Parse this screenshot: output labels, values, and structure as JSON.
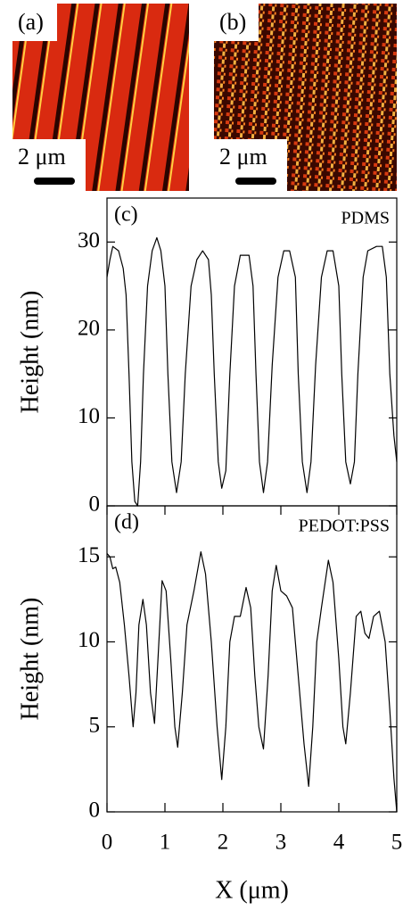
{
  "images": [
    {
      "label": "(a)",
      "scale": "2 μm"
    },
    {
      "label": "(b)",
      "scale": "2 μm"
    }
  ],
  "chart_data": [
    {
      "type": "line",
      "annotation": "(c)",
      "title": "PDMS",
      "ylabel": "Height (nm)",
      "color": "#000000",
      "xlim": [
        0,
        5
      ],
      "ylim": [
        0,
        35
      ],
      "yticks": [
        0,
        10,
        20,
        30
      ],
      "x": [
        0,
        0.05,
        0.1,
        0.2,
        0.28,
        0.33,
        0.38,
        0.43,
        0.48,
        0.53,
        0.58,
        0.63,
        0.7,
        0.78,
        0.86,
        0.93,
        1.0,
        1.05,
        1.12,
        1.2,
        1.28,
        1.35,
        1.45,
        1.55,
        1.65,
        1.75,
        1.8,
        1.85,
        1.92,
        1.98,
        2.05,
        2.12,
        2.2,
        2.3,
        2.45,
        2.52,
        2.57,
        2.63,
        2.7,
        2.77,
        2.85,
        2.95,
        3.05,
        3.15,
        3.25,
        3.3,
        3.37,
        3.45,
        3.52,
        3.6,
        3.7,
        3.8,
        3.9,
        4.0,
        4.05,
        4.12,
        4.2,
        4.27,
        4.33,
        4.42,
        4.5,
        4.65,
        4.75,
        4.82,
        4.88,
        4.95,
        5.0
      ],
      "values": [
        26,
        28,
        29.5,
        29,
        27,
        24,
        15,
        5,
        0.5,
        0,
        5,
        15,
        25,
        29,
        30.5,
        29,
        25,
        15,
        5,
        1.5,
        5,
        15,
        25,
        28,
        29,
        28,
        24,
        15,
        5,
        2,
        4,
        15,
        25,
        28.5,
        28.5,
        25,
        15,
        5,
        1.5,
        5,
        16,
        26,
        29,
        29,
        26,
        15,
        5,
        1.5,
        5,
        16,
        26,
        29,
        29,
        25,
        15,
        5,
        2.5,
        5,
        15,
        26,
        29,
        29.5,
        29.5,
        26,
        15,
        8,
        5
      ]
    },
    {
      "type": "line",
      "annotation": "(d)",
      "title": "PEDOT:PSS",
      "ylabel": "Height (nm)",
      "xlabel": "X (μm)",
      "color": "#000000",
      "xlim": [
        0,
        5
      ],
      "ylim": [
        0,
        18
      ],
      "yticks": [
        0,
        5,
        10,
        15
      ],
      "xticks": [
        0,
        1,
        2,
        3,
        4,
        5
      ],
      "x": [
        0,
        0.05,
        0.1,
        0.15,
        0.22,
        0.3,
        0.38,
        0.45,
        0.5,
        0.55,
        0.62,
        0.68,
        0.75,
        0.82,
        0.88,
        0.95,
        1.02,
        1.1,
        1.17,
        1.22,
        1.3,
        1.38,
        1.5,
        1.62,
        1.7,
        1.8,
        1.9,
        1.98,
        2.05,
        2.12,
        2.2,
        2.3,
        2.4,
        2.48,
        2.55,
        2.62,
        2.7,
        2.78,
        2.85,
        2.92,
        3.0,
        3.1,
        3.2,
        3.3,
        3.4,
        3.48,
        3.55,
        3.62,
        3.7,
        3.82,
        3.9,
        4.0,
        4.07,
        4.12,
        4.2,
        4.3,
        4.38,
        4.45,
        4.52,
        4.6,
        4.7,
        4.8,
        4.88,
        4.95,
        5.0
      ],
      "values": [
        15.2,
        15,
        14.3,
        14.4,
        13.5,
        11,
        8,
        5,
        7,
        11,
        12.5,
        11,
        7,
        5.2,
        9,
        13.6,
        13,
        9,
        5,
        3.8,
        7,
        11,
        13,
        15.3,
        14,
        10,
        5,
        1.9,
        5,
        10,
        11.5,
        11.5,
        13.2,
        12,
        8,
        5,
        3.7,
        8,
        13,
        14.5,
        13,
        12.7,
        12,
        8,
        4,
        1.5,
        5,
        10,
        12,
        14.8,
        13.5,
        9,
        5,
        4,
        7,
        11.5,
        11.8,
        10.5,
        10.2,
        11.5,
        11.8,
        10,
        6,
        2,
        0
      ]
    }
  ]
}
